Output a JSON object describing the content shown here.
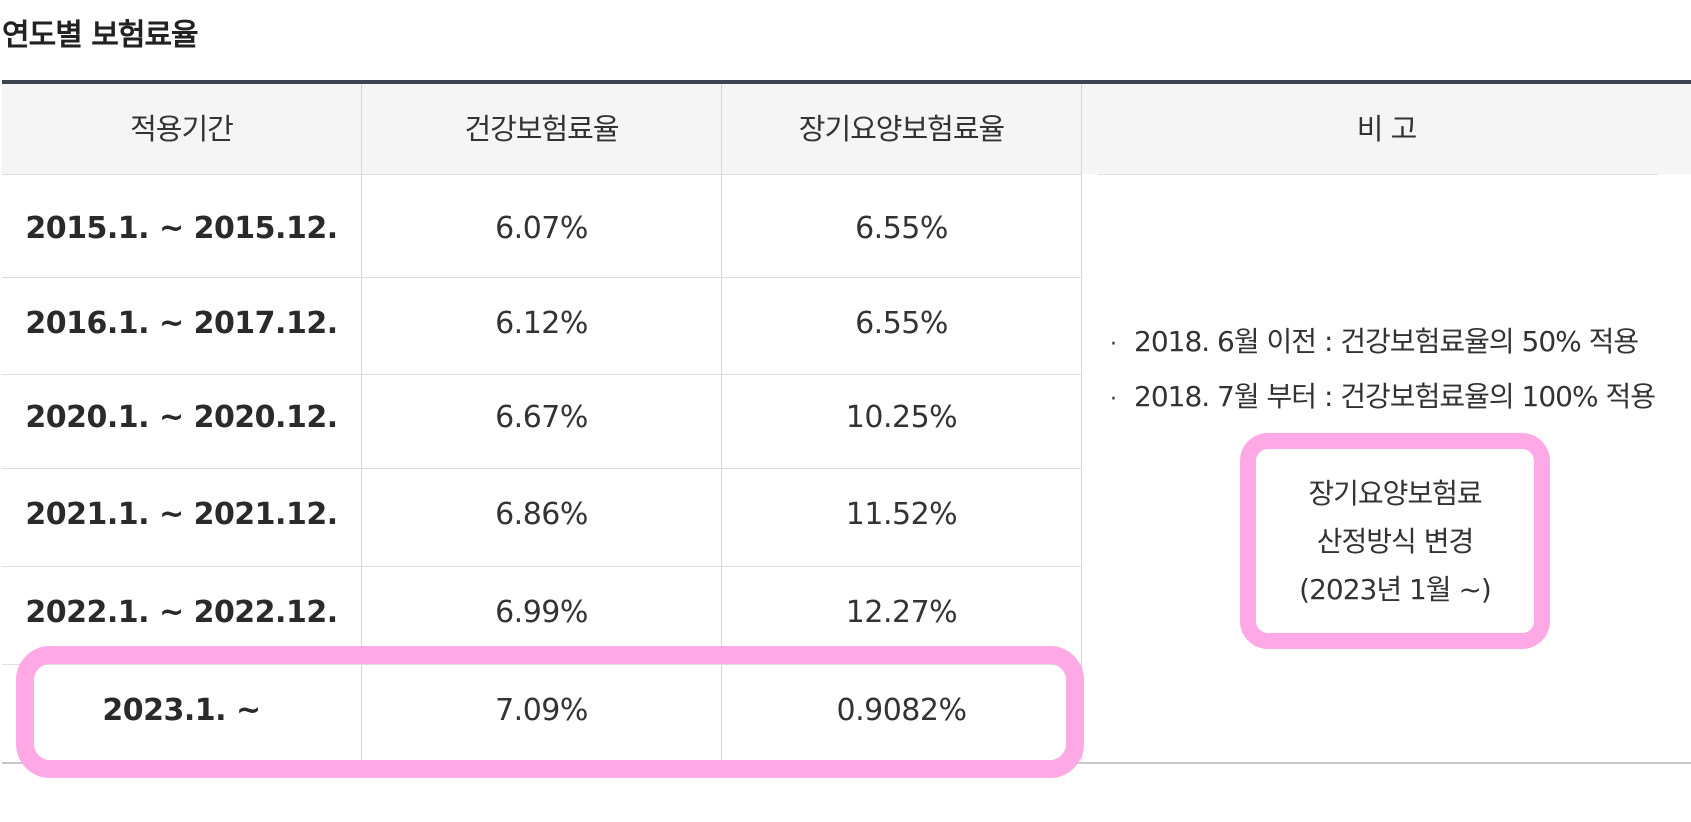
{
  "title": "연도별 보험료율",
  "table": {
    "headers": [
      "적용기간",
      "건강보험료율",
      "장기요양보험료율",
      "비 고"
    ],
    "rows": [
      {
        "period": "2015.1. ~ 2015.12.",
        "health": "6.07%",
        "ltc": "6.55%"
      },
      {
        "period": "2016.1. ~ 2017.12.",
        "health": "6.12%",
        "ltc": "6.55%"
      },
      {
        "period": "2020.1. ~ 2020.12.",
        "health": "6.67%",
        "ltc": "10.25%"
      },
      {
        "period": "2021.1. ~ 2021.12.",
        "health": "6.86%",
        "ltc": "11.52%"
      },
      {
        "period": "2022.1. ~ 2022.12.",
        "health": "6.99%",
        "ltc": "12.27%"
      },
      {
        "period": "2023.1. ~",
        "health": "7.09%",
        "ltc": "0.9082%"
      }
    ],
    "notes": {
      "bullet": "·",
      "items": [
        "2018. 6월 이전 : 건강보험료율의 50% 적용",
        "2018. 7월 부터 : 건강보험료율의 100% 적용"
      ],
      "change_box": [
        "장기요양보험료",
        "산정방식 변경",
        "(2023년 1월 ~)"
      ]
    }
  },
  "colors": {
    "highlight": "#ffa8e6",
    "top_rule": "#3d4350",
    "header_bg": "#f5f5f5"
  }
}
